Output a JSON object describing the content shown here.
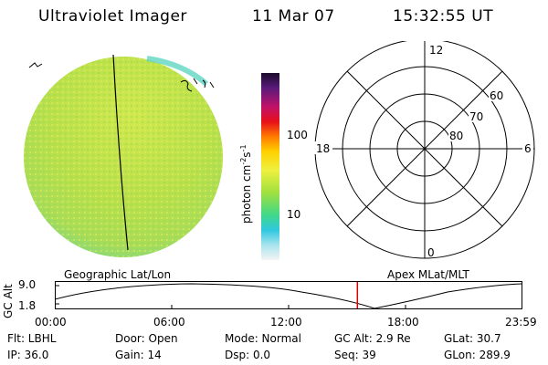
{
  "header": {
    "instrument": "Ultraviolet Imager",
    "date": "11 Mar 07",
    "time": "15:32:55 UT"
  },
  "colorbar": {
    "unit": "photon cm",
    "unit_exp1": "-2",
    "unit_mid": "s",
    "unit_exp2": "-1",
    "tick_high": "100",
    "tick_low": "10"
  },
  "polar_plot": {
    "mlt_top": "12",
    "mlt_left": "18",
    "mlt_right": "6",
    "mlt_bottom": "0",
    "lat_ring_outer": "60",
    "lat_ring_mid": "70",
    "lat_ring_inner": "80"
  },
  "orbit_panel": {
    "left_title": "Geographic Lat/Lon",
    "right_title": "Apex MLat/MLT",
    "y_axis_label": "GC Alt",
    "y_tick_top": "9.0",
    "y_tick_bottom": "1.8",
    "x_ticks": [
      "00:00",
      "06:00",
      "12:00",
      "18:00",
      "23:59"
    ],
    "current_time_fraction": 0.647
  },
  "status": {
    "flt_label": "Flt: LBHL",
    "door_label": "Door: Open",
    "mode_label": "Mode: Normal",
    "gcalt_label": "GC Alt: 2.9 Re",
    "glat_label": "GLat:  30.7",
    "ip_label": "IP: 36.0",
    "gain_label": "Gain: 14",
    "dsp_label": "Dsp:     0.0",
    "seq_label": "Seq: 39",
    "glon_label": "GLon: 289.9"
  },
  "colors": {
    "disk_primary": "#b6e04a",
    "disk_secondary": "#d8ec55",
    "disk_edge": "#48d6c8",
    "marker_red": "#e00000"
  }
}
